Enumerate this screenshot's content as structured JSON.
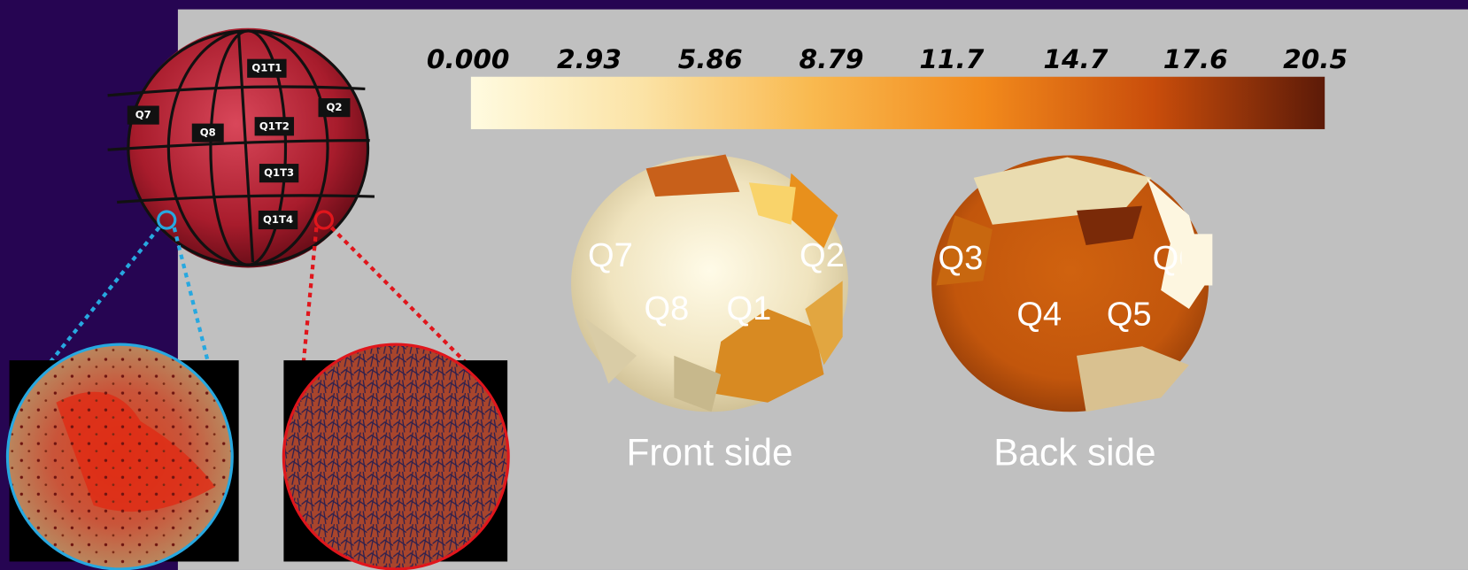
{
  "colorbar": {
    "range": [
      0,
      20.5
    ],
    "ticks": [
      {
        "value": 0,
        "label": "0.000"
      },
      2.93,
      5.86,
      8.79,
      11.7,
      14.7,
      17.6,
      20.5
    ],
    "colors": [
      "#fffbe0",
      "#fbe3a6",
      "#f9b94f",
      "#f28a1c",
      "#c94d0b",
      "#5c1a08"
    ]
  },
  "apple_photo": {
    "labels": [
      "Q1T1",
      "Q7",
      "Q8",
      "Q1T2",
      "Q2",
      "Q1T3",
      "Q1T4"
    ]
  },
  "front_view": {
    "caption": "Front side",
    "labels": [
      "Q7",
      "Q2",
      "Q8",
      "Q1"
    ]
  },
  "back_view": {
    "caption": "Back side",
    "labels": [
      "Q3",
      "Q6",
      "Q4",
      "Q5"
    ]
  }
}
